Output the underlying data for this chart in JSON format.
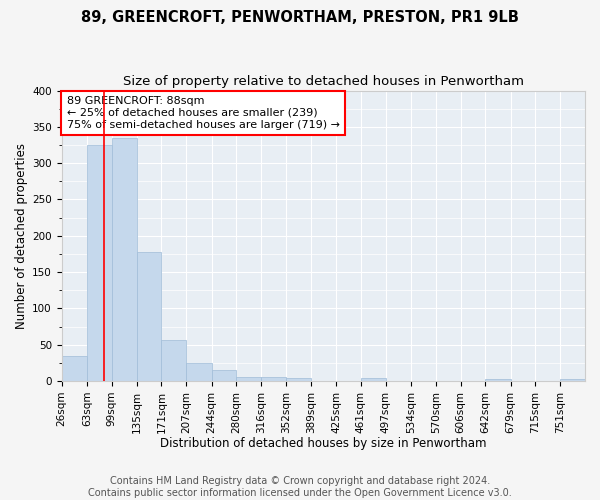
{
  "title1": "89, GREENCROFT, PENWORTHAM, PRESTON, PR1 9LB",
  "title2": "Size of property relative to detached houses in Penwortham",
  "xlabel": "Distribution of detached houses by size in Penwortham",
  "ylabel": "Number of detached properties",
  "footer1": "Contains HM Land Registry data © Crown copyright and database right 2024.",
  "footer2": "Contains public sector information licensed under the Open Government Licence v3.0.",
  "annotation_line1": "89 GREENCROFT: 88sqm",
  "annotation_line2": "← 25% of detached houses are smaller (239)",
  "annotation_line3": "75% of semi-detached houses are larger (719) →",
  "bar_color": "#c5d8ec",
  "bar_edge_color": "#a0bcd8",
  "red_line_x": 88,
  "categories": [
    "26sqm",
    "63sqm",
    "99sqm",
    "135sqm",
    "171sqm",
    "207sqm",
    "244sqm",
    "280sqm",
    "316sqm",
    "352sqm",
    "389sqm",
    "425sqm",
    "461sqm",
    "497sqm",
    "534sqm",
    "570sqm",
    "606sqm",
    "642sqm",
    "679sqm",
    "715sqm",
    "751sqm"
  ],
  "bin_edges": [
    26,
    63,
    99,
    135,
    171,
    207,
    244,
    280,
    316,
    352,
    389,
    425,
    461,
    497,
    534,
    570,
    606,
    642,
    679,
    715,
    751,
    787
  ],
  "values": [
    35,
    325,
    335,
    178,
    57,
    25,
    15,
    5,
    5,
    4,
    0,
    0,
    4,
    0,
    0,
    0,
    0,
    3,
    0,
    0,
    3
  ],
  "ylim": [
    0,
    400
  ],
  "yticks": [
    0,
    50,
    100,
    150,
    200,
    250,
    300,
    350,
    400
  ],
  "bg_color": "#e8eef4",
  "grid_color": "#ffffff",
  "fig_bg_color": "#f5f5f5",
  "title_fontsize": 10.5,
  "subtitle_fontsize": 9.5,
  "axis_label_fontsize": 8.5,
  "tick_fontsize": 7.5,
  "annotation_fontsize": 8,
  "footer_fontsize": 7
}
